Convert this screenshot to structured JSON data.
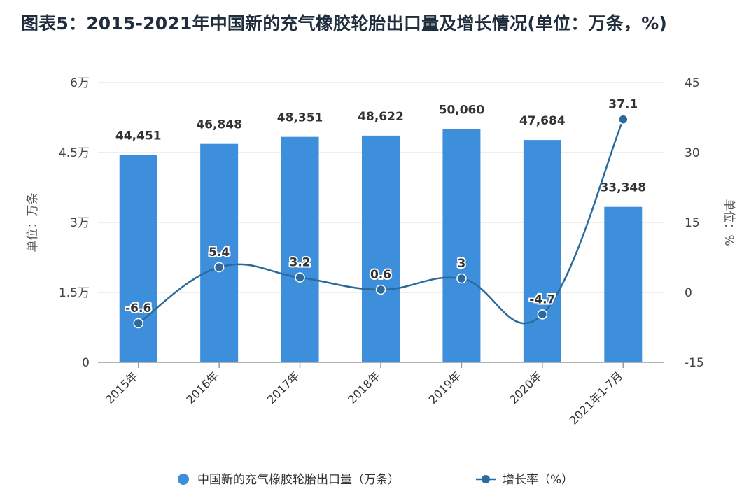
{
  "title": "图表5：2015-2021年中国新的充气橡胶轮胎出口量及增长情况(单位：万条，%)",
  "chart_data": {
    "type": "bar",
    "categories": [
      "2015年",
      "2016年",
      "2017年",
      "2018年",
      "2019年",
      "2020年",
      "2021年1-7月"
    ],
    "series": [
      {
        "name": "中国新的充气橡胶轮胎出口量（万条）",
        "type": "bar",
        "axis": "left",
        "color": "#3d8fdb",
        "values": [
          44451,
          46848,
          48351,
          48622,
          50060,
          47684,
          33348
        ],
        "labels": [
          "44,451",
          "46,848",
          "48,351",
          "48,622",
          "50,060",
          "47,684",
          "33,348"
        ]
      },
      {
        "name": "增长率（%）",
        "type": "line",
        "axis": "right",
        "color": "#2b6a9a",
        "values": [
          -6.6,
          5.4,
          3.2,
          0.6,
          3,
          -4.7,
          37.1
        ],
        "labels": [
          "-6.6",
          "5.4",
          "3.2",
          "0.6",
          "3",
          "-4.7",
          "37.1"
        ]
      }
    ],
    "y_left": {
      "label": "单位：万条",
      "ylim": [
        0,
        60000
      ],
      "ticks": [
        0,
        15000,
        30000,
        45000,
        60000
      ],
      "tick_labels": [
        "0",
        "1.5万",
        "3万",
        "4.5万",
        "6万"
      ]
    },
    "y_right": {
      "label": "单位：%",
      "ylim": [
        -15,
        45
      ],
      "ticks": [
        -15,
        0,
        15,
        30,
        45
      ],
      "tick_labels": [
        "-15",
        "0",
        "15",
        "30",
        "45"
      ]
    },
    "grid": true,
    "legend": "bottom"
  }
}
